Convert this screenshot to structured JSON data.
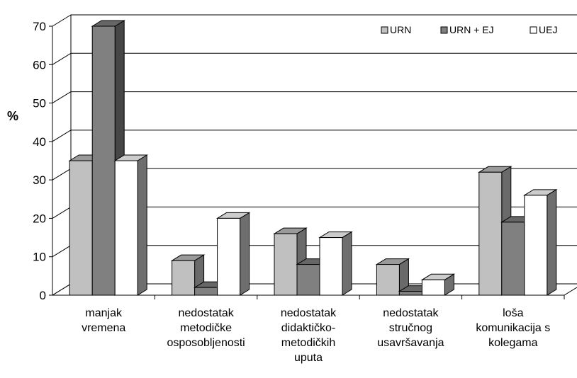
{
  "chart_data": {
    "type": "bar",
    "ylabel": "%",
    "ylim": [
      0,
      70
    ],
    "yticks": [
      0,
      10,
      20,
      30,
      40,
      50,
      60,
      70
    ],
    "grid": true,
    "legend_position": "top-right",
    "categories": [
      [
        "manjak",
        "vremena"
      ],
      [
        "nedostatak",
        "metodičke",
        "osposobljenosti"
      ],
      [
        "nedostatak",
        "didaktičko-",
        "metodičkih",
        "uputa"
      ],
      [
        "nedostatak",
        "stručnog",
        "usavršavanja"
      ],
      [
        "loša",
        "komunikacija s",
        "kolegama"
      ]
    ],
    "series": [
      {
        "name": "URN",
        "color": "#c0c0c0",
        "values": [
          35,
          9,
          16,
          8,
          32
        ]
      },
      {
        "name": "URN + EJ",
        "color": "#808080",
        "values": [
          70,
          2,
          8,
          1,
          19
        ]
      },
      {
        "name": "UEJ",
        "color": "#ffffff",
        "values": [
          35,
          20,
          15,
          4,
          26
        ]
      }
    ]
  }
}
